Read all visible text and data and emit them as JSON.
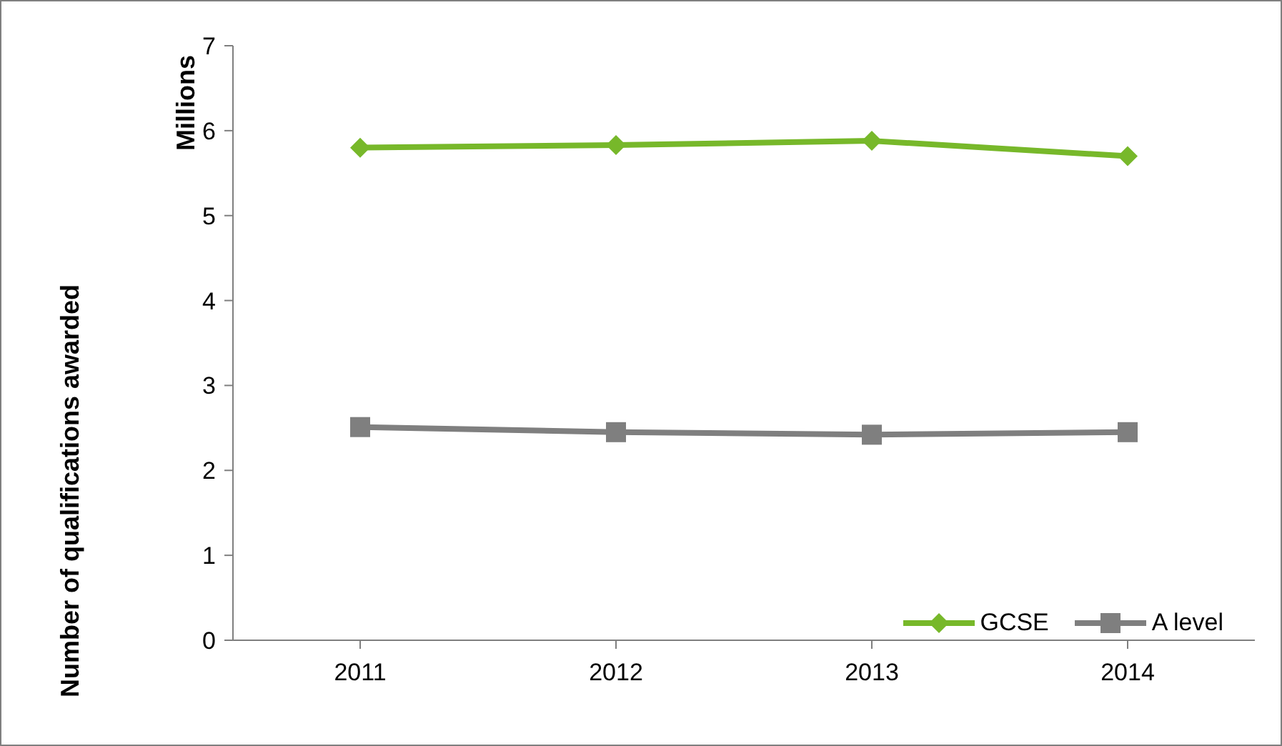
{
  "chart_data": {
    "type": "line",
    "ylabel": "Millions",
    "annotations": [
      "Number of qualifications awarded"
    ],
    "categories": [
      "2011",
      "2012",
      "2013",
      "2014"
    ],
    "series": [
      {
        "name": "GCSE",
        "color": "#77b82a",
        "marker": "diamond",
        "values": [
          5.8,
          5.83,
          5.88,
          5.7
        ]
      },
      {
        "name": "A level",
        "color": "#7f7f7f",
        "marker": "square",
        "values": [
          2.51,
          2.45,
          2.42,
          2.45
        ]
      }
    ],
    "ylim": [
      0,
      7
    ],
    "yticks": [
      0,
      1,
      2,
      3,
      4,
      5,
      6,
      7
    ],
    "grid": false,
    "legend": "bottom right",
    "line_style": "solid"
  }
}
